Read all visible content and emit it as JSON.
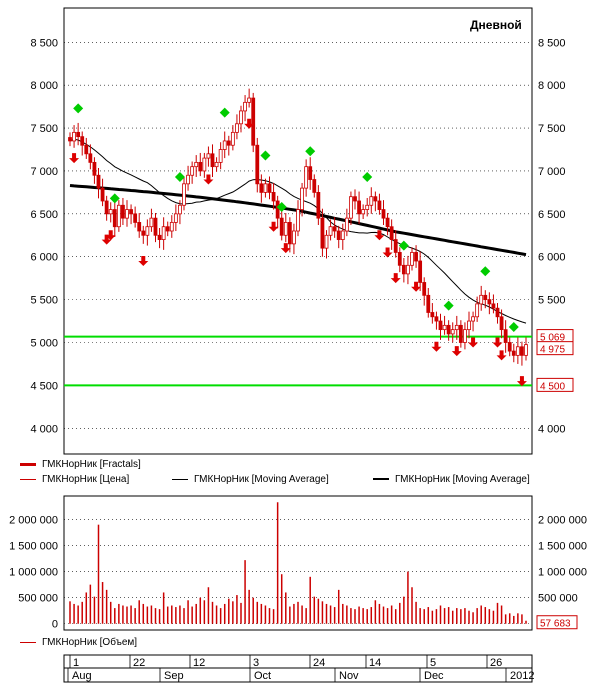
{
  "timeframe_label": "Дневной",
  "colors": {
    "candle": "#cc0000",
    "fractal_down": "#dd0000",
    "fractal_up": "#00cc00",
    "ma_thin": "#000000",
    "ma_thick": "#000000",
    "hline": "#00dd00",
    "volume": "#cc0000",
    "grid": "#000000"
  },
  "legend": {
    "fractals": "ГМКНорНик [Fractals]",
    "price": "ГМКНорНик [Цена]",
    "ma1": "ГМКНорНик [Moving Average]",
    "ma2": "ГМКНорНик [Moving Average]",
    "volume": "ГМКНорНик [Объем]"
  },
  "price_axis": {
    "ticks": [
      4000,
      4500,
      5000,
      5500,
      6000,
      6500,
      7000,
      7500,
      8000,
      8500
    ],
    "tick_labels": [
      "4 000",
      "4 500",
      "5 000",
      "5 500",
      "6 000",
      "6 500",
      "7 000",
      "7 500",
      "8 000",
      "8 500"
    ],
    "ylim": [
      3700,
      8900
    ]
  },
  "price_labels": {
    "upper": "5 069",
    "last": "4 975",
    "lower": "4 500"
  },
  "volume_axis": {
    "ticks": [
      0,
      500000,
      1000000,
      1500000,
      2000000
    ],
    "tick_labels": [
      "0",
      "500 000",
      "1 000 000",
      "1 500 000",
      "2 000 000"
    ],
    "ylim": [
      -120000,
      2450000
    ],
    "last_label": "57 683"
  },
  "date_axis": {
    "day_labels": [
      "1",
      "22",
      "12",
      "3",
      "24",
      "14",
      "5",
      "26"
    ],
    "month_labels": [
      "Aug",
      "Sep",
      "Oct",
      "Nov",
      "Dec",
      "2012"
    ]
  },
  "chart_data": {
    "type": "candlestick",
    "n_bars": 113,
    "horizontal_levels": [
      5069,
      4500
    ],
    "close": [
      7350,
      7450,
      7400,
      7300,
      7200,
      7100,
      6950,
      6800,
      6650,
      6500,
      6550,
      6350,
      6600,
      6450,
      6550,
      6500,
      6400,
      6300,
      6250,
      6350,
      6450,
      6250,
      6200,
      6350,
      6300,
      6400,
      6500,
      6600,
      6850,
      6950,
      7050,
      7100,
      7000,
      7150,
      7200,
      7050,
      7100,
      7250,
      7350,
      7300,
      7450,
      7550,
      7700,
      7800,
      7850,
      7300,
      6850,
      6750,
      6850,
      6750,
      6650,
      6450,
      6250,
      6400,
      6150,
      6300,
      6550,
      6800,
      7050,
      6900,
      6750,
      6450,
      6100,
      6250,
      6350,
      6300,
      6200,
      6300,
      6450,
      6700,
      6650,
      6500,
      6550,
      6600,
      6700,
      6650,
      6550,
      6450,
      6350,
      6200,
      6050,
      5900,
      5800,
      5900,
      6050,
      5950,
      5700,
      5550,
      5350,
      5300,
      5250,
      5150,
      5200,
      5100,
      5150,
      5200,
      5000,
      5150,
      5250,
      5300,
      5450,
      5550,
      5500,
      5450,
      5400,
      5300,
      5150,
      5000,
      4900,
      4850,
      4950,
      4850,
      4975
    ],
    "fractals_up_bar": [
      2,
      12,
      29,
      41,
      52,
      57,
      64,
      79,
      89,
      101,
      111,
      119
    ],
    "fractals_down_bar": [
      1,
      10,
      11,
      20,
      37,
      48,
      54,
      58,
      83,
      85,
      87,
      93,
      98,
      103,
      108,
      114,
      116,
      121
    ],
    "ma_thin_start": 7350,
    "ma_thin_end": 5290,
    "ma_thick_start": 6830,
    "ma_thick_end": 6150,
    "volume": [
      430000,
      380000,
      350000,
      420000,
      600000,
      750000,
      520000,
      1900000,
      800000,
      650000,
      420000,
      300000,
      380000,
      350000,
      330000,
      350000,
      300000,
      450000,
      380000,
      330000,
      350000,
      300000,
      280000,
      600000,
      330000,
      350000,
      320000,
      350000,
      300000,
      450000,
      330000,
      380000,
      500000,
      450000,
      700000,
      420000,
      350000,
      300000,
      380000,
      480000,
      430000,
      550000,
      400000,
      1220000,
      650000,
      500000,
      420000,
      380000,
      350000,
      300000,
      280000,
      2330000,
      950000,
      600000,
      330000,
      380000,
      420000,
      350000,
      300000,
      900000,
      520000,
      480000,
      430000,
      380000,
      350000,
      320000,
      650000,
      380000,
      350000,
      300000,
      280000,
      330000,
      300000,
      280000,
      320000,
      450000,
      380000,
      330000,
      300000,
      350000,
      280000,
      400000,
      520000,
      1000000,
      700000,
      420000,
      300000,
      280000,
      320000,
      250000,
      280000,
      350000,
      300000,
      320000,
      250000,
      300000,
      280000,
      300000,
      250000,
      220000,
      300000,
      350000,
      320000,
      280000,
      250000,
      400000,
      350000,
      180000,
      200000,
      150000,
      200000,
      180000,
      57683
    ]
  }
}
